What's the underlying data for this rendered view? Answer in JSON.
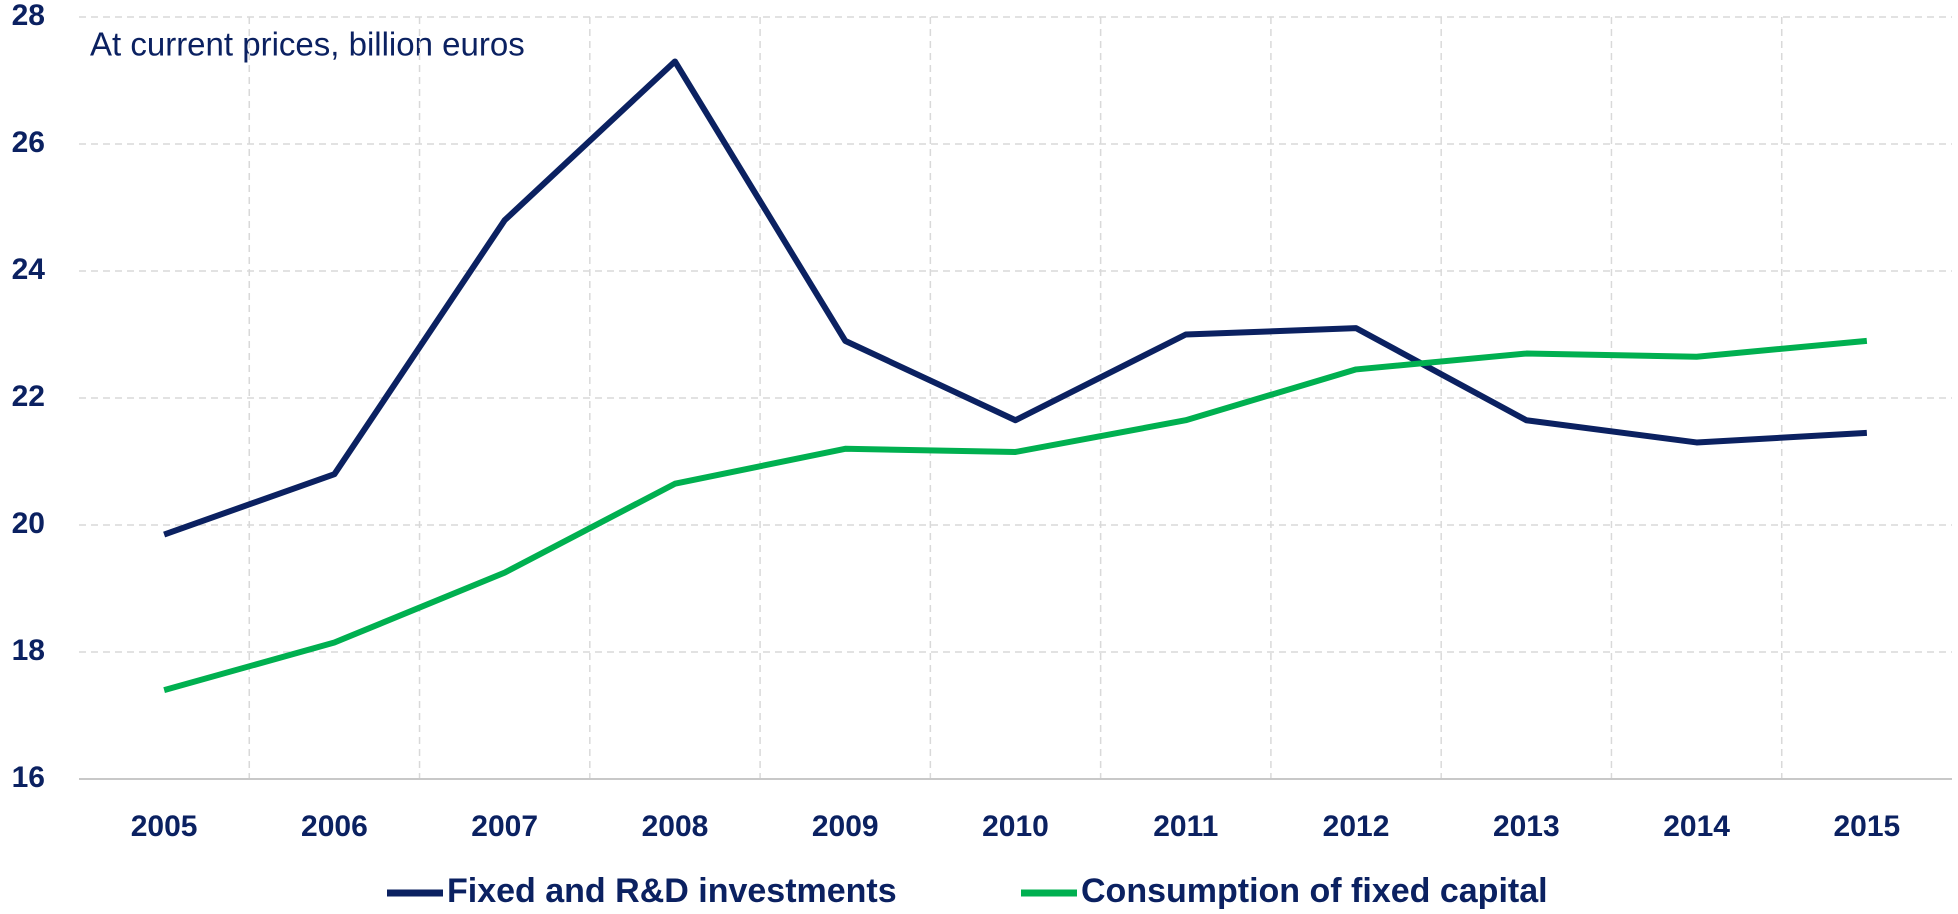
{
  "chart_data": {
    "type": "line",
    "annotation": "At current prices, billion euros",
    "categories": [
      "2005",
      "2006",
      "2007",
      "2008",
      "2009",
      "2010",
      "2011",
      "2012",
      "2013",
      "2014",
      "2015"
    ],
    "series": [
      {
        "name": "Fixed and R&D investments",
        "color": "#0b2161",
        "values": [
          19.85,
          20.8,
          24.8,
          27.3,
          22.9,
          21.65,
          23.0,
          23.1,
          21.65,
          21.3,
          21.45
        ]
      },
      {
        "name": "Consumption of fixed capital",
        "color": "#00b050",
        "values": [
          17.4,
          18.15,
          19.25,
          20.65,
          21.2,
          21.15,
          21.65,
          22.45,
          22.7,
          22.65,
          22.9
        ]
      }
    ],
    "ylim": [
      16,
      28
    ],
    "yticks": [
      16,
      18,
      20,
      22,
      24,
      26,
      28
    ],
    "grid": true,
    "legend": "bottom"
  }
}
